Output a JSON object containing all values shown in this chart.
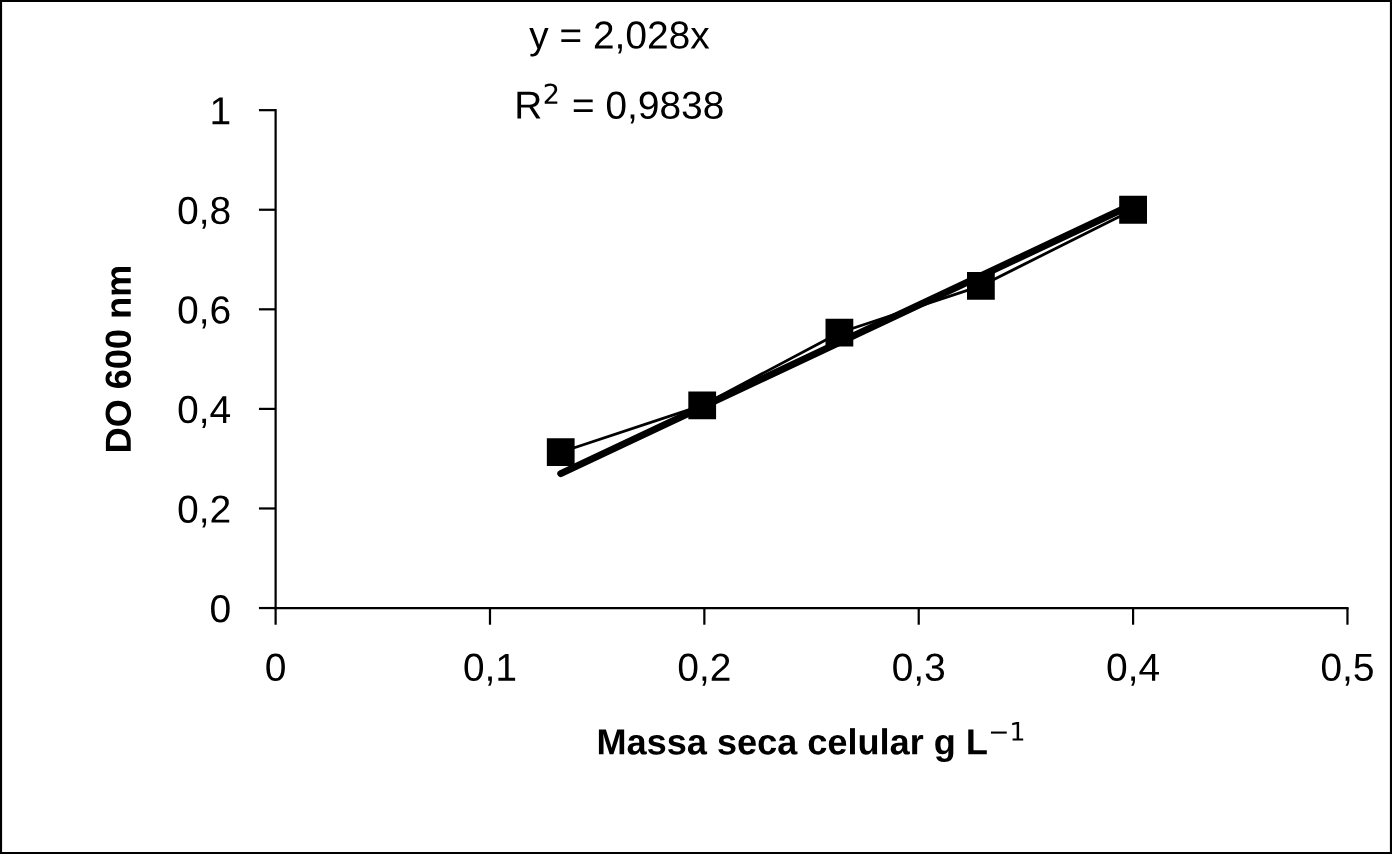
{
  "chart_data": {
    "type": "line",
    "xlabel": "Massa seca celular g L$^{−1}$",
    "ylabel": "DO 600 nm",
    "annotations": [
      "y = 2,028x",
      "R$^{2}$ = 0,9838"
    ],
    "series": [
      {
        "x": [
          0.133,
          0.199,
          0.263,
          0.329,
          0.4
        ],
        "values": [
          0.313,
          0.407,
          0.553,
          0.647,
          0.8
        ],
        "color": "#000000",
        "marker": "square",
        "line_style": "solid"
      },
      {
        "x": [
          0.133,
          0.4
        ],
        "values": [
          0.27,
          0.811
        ],
        "color": "#000000",
        "marker": "none",
        "line_style": "solid"
      }
    ],
    "xlim": [
      0,
      0.5
    ],
    "xticks": [
      {
        "value": 0,
        "label": "0"
      },
      {
        "value": 0.1,
        "label": "0,1"
      },
      {
        "value": 0.2,
        "label": "0,2"
      },
      {
        "value": 0.3,
        "label": "0,3"
      },
      {
        "value": 0.4,
        "label": "0,4"
      },
      {
        "value": 0.5,
        "label": "0,5"
      }
    ],
    "ylim": [
      0,
      1
    ],
    "yticks": [
      {
        "value": 0,
        "label": "0"
      },
      {
        "value": 0.2,
        "label": "0,2"
      },
      {
        "value": 0.4,
        "label": "0,4"
      },
      {
        "value": 0.6,
        "label": "0,6"
      },
      {
        "value": 0.8,
        "label": "0,8"
      },
      {
        "value": 1,
        "label": "1"
      }
    ],
    "grid": false,
    "legend": false
  }
}
